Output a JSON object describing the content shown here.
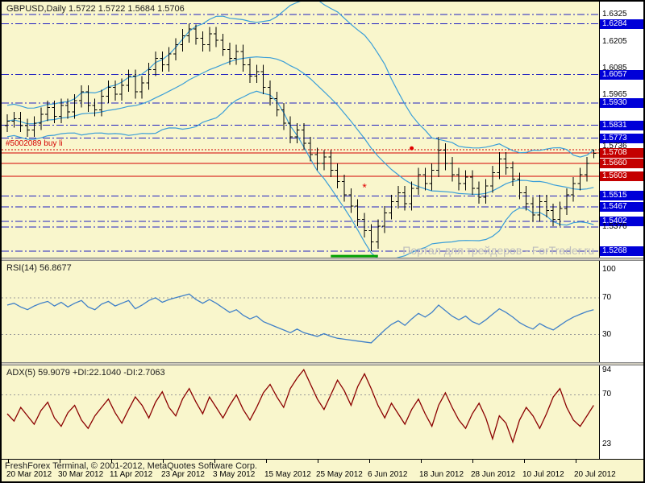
{
  "window": {
    "bg_color": "#F9F6CC",
    "scale_bg": "#FFFFFF",
    "accent_blue": "#0000D8",
    "accent_red": "#C40000"
  },
  "header": {
    "symbol": "GBPUSD",
    "timeframe": "Daily",
    "title": "GBPUSD,Daily 1.5722 1.5722 1.5684 1.5706"
  },
  "watermark": "Портал для трейдеров - ForTrader.ru",
  "status_bar": {
    "copyright": "FreshForex Terminal, © 2001-2012, MetaQuotes Software Corp."
  },
  "x_axis": {
    "labels": [
      "20 Mar 2012",
      "30 Mar 2012",
      "11 Apr 2012",
      "23 Apr 2012",
      "3 May 2012",
      "15 May 2012",
      "25 May 2012",
      "6 Jun 2012",
      "18 Jun 2012",
      "28 Jun 2012",
      "10 Jul 2012",
      "20 Jul 2012"
    ]
  },
  "chart_data": [
    {
      "type": "bar",
      "subtype": "ohlc",
      "title": "GBPUSD,Daily",
      "ohlc_readout": {
        "open": 1.5722,
        "high": 1.5722,
        "low": 1.5684,
        "close": 1.5706
      },
      "price_range": [
        1.524,
        1.6383
      ],
      "bar_color": "#000000",
      "overlay": {
        "name": "Bollinger Bands",
        "period": 20,
        "deviation": 2,
        "color": "#3A9ED8"
      },
      "levels": [
        {
          "price": 1.6325,
          "color": "#2020C0",
          "style": "dashdot"
        },
        {
          "price": 1.6284,
          "color": "#2020C0",
          "style": "dashdot"
        },
        {
          "price": 1.6057,
          "color": "#2020C0",
          "style": "dashdot"
        },
        {
          "price": 1.593,
          "color": "#2020C0",
          "style": "dashdot"
        },
        {
          "price": 1.5831,
          "color": "#2020C0",
          "style": "dashdot"
        },
        {
          "price": 1.5773,
          "color": "#2020C0",
          "style": "dashdot"
        },
        {
          "price": 1.5708,
          "color": "#D40000",
          "style": "solid"
        },
        {
          "price": 1.566,
          "color": "#D40000",
          "style": "solid"
        },
        {
          "price": 1.5603,
          "color": "#D40000",
          "style": "solid"
        },
        {
          "price": 1.5515,
          "color": "#2020C0",
          "style": "dashdot"
        },
        {
          "price": 1.5467,
          "color": "#2020C0",
          "style": "dashdot"
        },
        {
          "price": 1.5402,
          "color": "#2020C0",
          "style": "dashdot"
        },
        {
          "price": 1.5376,
          "color": "#2020C0",
          "style": "dashdot"
        },
        {
          "price": 1.5268,
          "color": "#2020C0",
          "style": "dashdot"
        }
      ],
      "price_scale": [
        {
          "text": "1.6325",
          "style": "plain"
        },
        {
          "text": "1.6284",
          "style": "blue"
        },
        {
          "text": "1.6205",
          "style": "plain"
        },
        {
          "text": "1.6085",
          "style": "plain"
        },
        {
          "text": "1.6057",
          "style": "blue"
        },
        {
          "text": "1.5965",
          "style": "plain"
        },
        {
          "text": "1.5930",
          "style": "blue"
        },
        {
          "text": "1.5831",
          "style": "blue"
        },
        {
          "text": "1.5773",
          "style": "blue"
        },
        {
          "text": "1.5736",
          "style": "plain"
        },
        {
          "text": "1.5708",
          "style": "red"
        },
        {
          "text": "1.5660",
          "style": "red"
        },
        {
          "text": "1.5603",
          "style": "red"
        },
        {
          "text": "1.5515",
          "style": "blue"
        },
        {
          "text": "1.5467",
          "style": "blue"
        },
        {
          "text": "1.5402",
          "style": "blue"
        },
        {
          "text": "1.5376",
          "style": "plain"
        },
        {
          "text": "1.5268",
          "style": "blue"
        }
      ],
      "order_line": {
        "text": "#5002089 buy li",
        "price": 1.5722,
        "color": "#D40000",
        "style": "dotted"
      },
      "markers": [
        {
          "shape": "dot",
          "color": "#E00000",
          "bar": 60,
          "price": 1.5728
        },
        {
          "shape": "asterisk",
          "color": "#E00000",
          "bar": 53,
          "price": 1.5555
        }
      ],
      "segments": [
        {
          "from_bar": 48,
          "to_bar": 55,
          "price": 1.5247,
          "color": "#00A000",
          "width": 3
        }
      ],
      "ohlc": [
        [
          1.583,
          1.588,
          1.58,
          1.585
        ],
        [
          1.585,
          1.589,
          1.582,
          1.586
        ],
        [
          1.586,
          1.589,
          1.58,
          1.583
        ],
        [
          1.583,
          1.586,
          1.578,
          1.581
        ],
        [
          1.581,
          1.587,
          1.578,
          1.584
        ],
        [
          1.584,
          1.591,
          1.581,
          1.588
        ],
        [
          1.588,
          1.594,
          1.585,
          1.591
        ],
        [
          1.591,
          1.594,
          1.584,
          1.587
        ],
        [
          1.587,
          1.595,
          1.584,
          1.592
        ],
        [
          1.592,
          1.595,
          1.586,
          1.589
        ],
        [
          1.589,
          1.597,
          1.586,
          1.594
        ],
        [
          1.594,
          1.601,
          1.591,
          1.598
        ],
        [
          1.598,
          1.601,
          1.589,
          1.592
        ],
        [
          1.592,
          1.595,
          1.587,
          1.59
        ],
        [
          1.59,
          1.599,
          1.587,
          1.596
        ],
        [
          1.596,
          1.603,
          1.593,
          1.6
        ],
        [
          1.6,
          1.603,
          1.594,
          1.597
        ],
        [
          1.597,
          1.604,
          1.594,
          1.601
        ],
        [
          1.601,
          1.608,
          1.598,
          1.605
        ],
        [
          1.605,
          1.608,
          1.595,
          1.598
        ],
        [
          1.598,
          1.605,
          1.595,
          1.602
        ],
        [
          1.602,
          1.611,
          1.599,
          1.608
        ],
        [
          1.608,
          1.616,
          1.605,
          1.613
        ],
        [
          1.613,
          1.616,
          1.607,
          1.61
        ],
        [
          1.61,
          1.618,
          1.607,
          1.615
        ],
        [
          1.615,
          1.622,
          1.612,
          1.619
        ],
        [
          1.619,
          1.626,
          1.616,
          1.623
        ],
        [
          1.623,
          1.6284,
          1.62,
          1.626
        ],
        [
          1.626,
          1.628,
          1.619,
          1.622
        ],
        [
          1.622,
          1.625,
          1.616,
          1.619
        ],
        [
          1.619,
          1.627,
          1.616,
          1.624
        ],
        [
          1.624,
          1.627,
          1.618,
          1.621
        ],
        [
          1.621,
          1.624,
          1.614,
          1.617
        ],
        [
          1.617,
          1.62,
          1.61,
          1.613
        ],
        [
          1.613,
          1.619,
          1.61,
          1.616
        ],
        [
          1.616,
          1.619,
          1.607,
          1.61
        ],
        [
          1.61,
          1.613,
          1.602,
          1.605
        ],
        [
          1.605,
          1.61,
          1.602,
          1.607
        ],
        [
          1.607,
          1.61,
          1.597,
          1.6
        ],
        [
          1.6,
          1.603,
          1.592,
          1.595
        ],
        [
          1.595,
          1.598,
          1.587,
          1.59
        ],
        [
          1.59,
          1.593,
          1.581,
          1.584
        ],
        [
          1.584,
          1.587,
          1.575,
          1.578
        ],
        [
          1.578,
          1.584,
          1.575,
          1.581
        ],
        [
          1.581,
          1.584,
          1.572,
          1.575
        ],
        [
          1.575,
          1.578,
          1.567,
          1.57
        ],
        [
          1.57,
          1.573,
          1.563,
          1.566
        ],
        [
          1.566,
          1.572,
          1.563,
          1.569
        ],
        [
          1.569,
          1.572,
          1.56,
          1.563
        ],
        [
          1.563,
          1.566,
          1.555,
          1.558
        ],
        [
          1.558,
          1.561,
          1.549,
          1.552
        ],
        [
          1.552,
          1.555,
          1.544,
          1.547
        ],
        [
          1.547,
          1.55,
          1.538,
          1.541
        ],
        [
          1.541,
          1.544,
          1.533,
          1.536
        ],
        [
          1.536,
          1.539,
          1.5268,
          1.531
        ],
        [
          1.531,
          1.541,
          1.528,
          1.538
        ],
        [
          1.538,
          1.547,
          1.535,
          1.544
        ],
        [
          1.544,
          1.552,
          1.541,
          1.549
        ],
        [
          1.549,
          1.556,
          1.546,
          1.553
        ],
        [
          1.553,
          1.556,
          1.545,
          1.548
        ],
        [
          1.548,
          1.558,
          1.545,
          1.555
        ],
        [
          1.555,
          1.564,
          1.552,
          1.561
        ],
        [
          1.561,
          1.564,
          1.554,
          1.557
        ],
        [
          1.557,
          1.566,
          1.554,
          1.563
        ],
        [
          1.563,
          1.578,
          1.56,
          1.572
        ],
        [
          1.572,
          1.575,
          1.563,
          1.566
        ],
        [
          1.566,
          1.569,
          1.558,
          1.561
        ],
        [
          1.561,
          1.564,
          1.554,
          1.557
        ],
        [
          1.557,
          1.563,
          1.554,
          1.56
        ],
        [
          1.56,
          1.563,
          1.552,
          1.555
        ],
        [
          1.555,
          1.558,
          1.548,
          1.551
        ],
        [
          1.551,
          1.559,
          1.548,
          1.556
        ],
        [
          1.556,
          1.565,
          1.553,
          1.562
        ],
        [
          1.562,
          1.571,
          1.559,
          1.568
        ],
        [
          1.568,
          1.571,
          1.561,
          1.564
        ],
        [
          1.564,
          1.567,
          1.556,
          1.559
        ],
        [
          1.559,
          1.562,
          1.55,
          1.553
        ],
        [
          1.553,
          1.556,
          1.545,
          1.548
        ],
        [
          1.548,
          1.551,
          1.54,
          1.543
        ],
        [
          1.543,
          1.552,
          1.54,
          1.549
        ],
        [
          1.549,
          1.552,
          1.542,
          1.545
        ],
        [
          1.545,
          1.548,
          1.538,
          1.541
        ],
        [
          1.541,
          1.549,
          1.538,
          1.546
        ],
        [
          1.546,
          1.555,
          1.543,
          1.552
        ],
        [
          1.552,
          1.56,
          1.549,
          1.557
        ],
        [
          1.557,
          1.564,
          1.554,
          1.561
        ],
        [
          1.561,
          1.569,
          1.558,
          1.566
        ],
        [
          1.5722,
          1.5722,
          1.5684,
          1.5706
        ]
      ]
    },
    {
      "type": "line",
      "name": "RSI(14)",
      "label": "RSI(14) 56.8677",
      "current": 56.8677,
      "color": "#4080C8",
      "range": [
        0,
        110
      ],
      "levels": [
        70,
        30
      ],
      "axis_labels": [
        {
          "text": "100",
          "value": 100
        },
        {
          "text": "70",
          "value": 70
        },
        {
          "text": "30",
          "value": 30
        }
      ],
      "values": [
        62,
        64,
        60,
        57,
        61,
        64,
        66,
        61,
        65,
        60,
        64,
        67,
        60,
        57,
        63,
        66,
        61,
        64,
        67,
        58,
        62,
        67,
        70,
        65,
        68,
        70,
        72,
        74,
        68,
        64,
        68,
        64,
        59,
        54,
        57,
        51,
        47,
        50,
        44,
        41,
        38,
        35,
        32,
        36,
        32,
        30,
        28,
        31,
        28,
        26,
        25,
        24,
        23,
        22,
        21,
        28,
        35,
        41,
        45,
        40,
        47,
        53,
        49,
        54,
        62,
        56,
        50,
        46,
        50,
        44,
        41,
        46,
        52,
        58,
        54,
        49,
        43,
        39,
        36,
        42,
        38,
        35,
        40,
        45,
        49,
        52,
        55,
        57
      ]
    },
    {
      "type": "line",
      "name": "ADX(5)",
      "label": "ADX(5) 59.9079 +DI:22.1040 -DI:2.7063",
      "current": 59.9079,
      "plus_di": 22.104,
      "minus_di": 2.7063,
      "color": "#8B0000",
      "range": [
        9,
        98
      ],
      "levels": [
        70
      ],
      "axis_labels": [
        {
          "text": "94",
          "value": 94
        },
        {
          "text": "70",
          "value": 70
        },
        {
          "text": "23",
          "value": 23
        }
      ],
      "values": [
        52,
        45,
        58,
        50,
        42,
        55,
        63,
        48,
        40,
        53,
        60,
        46,
        38,
        50,
        58,
        66,
        53,
        43,
        56,
        68,
        60,
        48,
        63,
        73,
        58,
        50,
        66,
        76,
        63,
        52,
        68,
        58,
        48,
        60,
        70,
        56,
        46,
        58,
        72,
        80,
        68,
        58,
        76,
        86,
        94,
        80,
        66,
        56,
        70,
        84,
        74,
        60,
        78,
        90,
        76,
        60,
        48,
        62,
        52,
        42,
        56,
        66,
        52,
        40,
        60,
        72,
        58,
        46,
        38,
        52,
        62,
        48,
        28,
        50,
        43,
        25,
        46,
        58,
        50,
        38,
        52,
        68,
        76,
        58,
        46,
        40,
        50,
        60
      ]
    }
  ]
}
